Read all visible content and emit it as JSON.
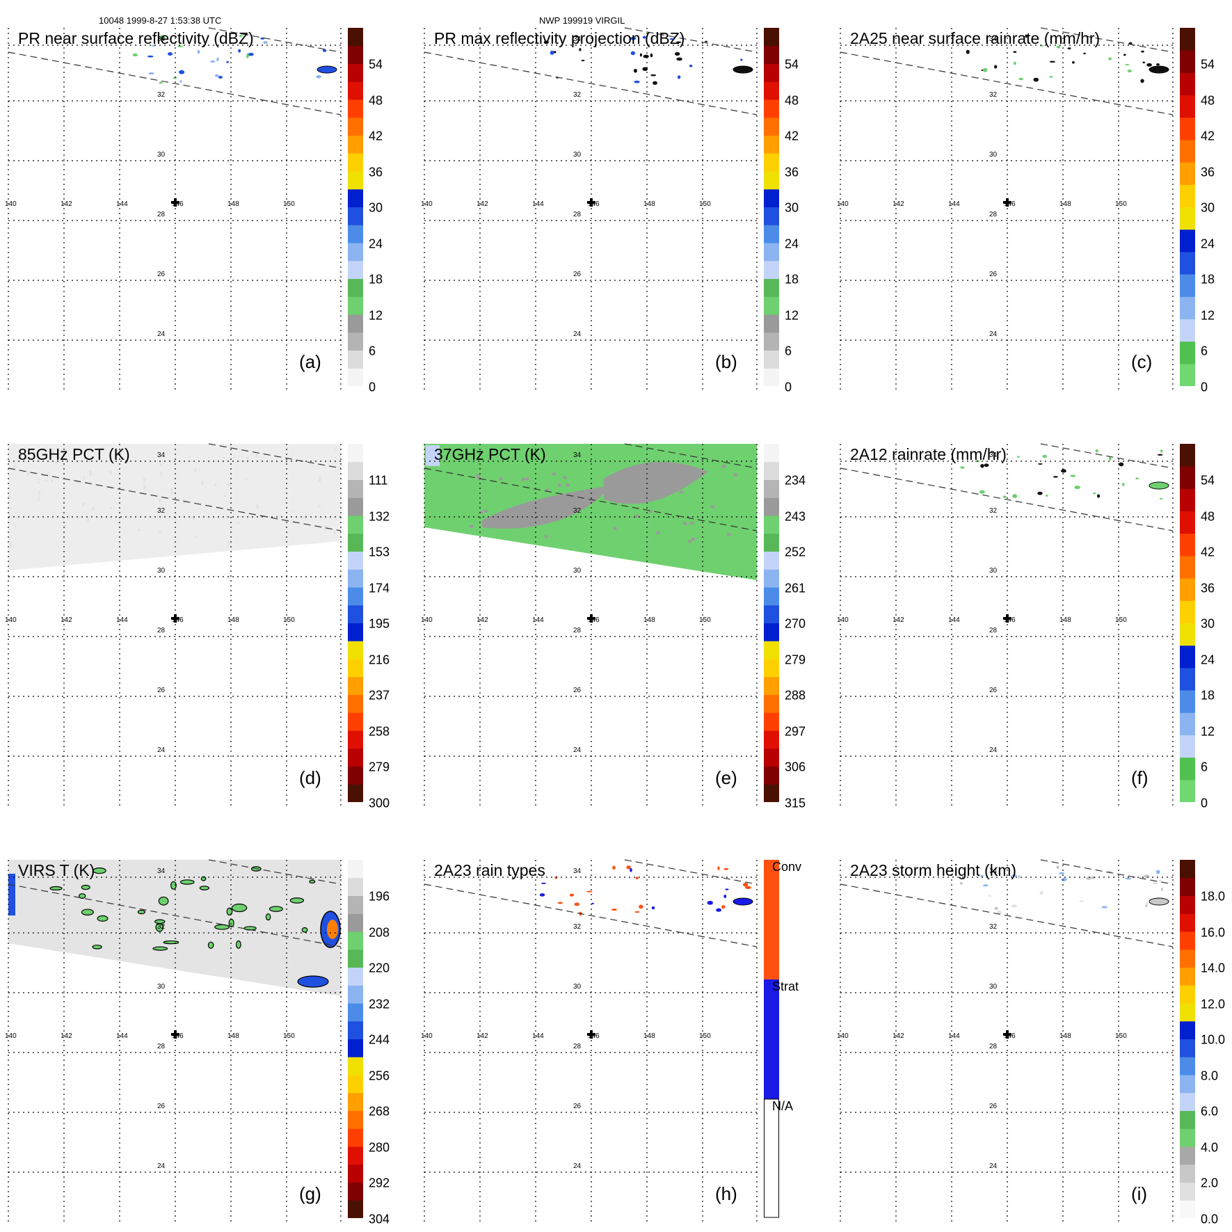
{
  "header": {
    "left": "10048 1999-8-27 1:53:38 UTC",
    "center": "NWP 199919 VIRGIL"
  },
  "map_axes": {
    "longitudes": [
      "140",
      "142",
      "144",
      "146",
      "148",
      "150"
    ],
    "latitudes": [
      "34",
      "32",
      "30",
      "28",
      "26",
      "24"
    ],
    "storm_center_icon": "plus-marker-icon",
    "gridlines": "dotted",
    "swath_edges": "dashed"
  },
  "panels": [
    {
      "id": "a",
      "label": "(a)",
      "title": "PR near surface reflectivity (dBZ)",
      "colorbar": [
        "54",
        "48",
        "42",
        "36",
        "30",
        "24",
        "18",
        "12",
        "6",
        "0"
      ],
      "scheme": "reflectivity",
      "field": "sparse"
    },
    {
      "id": "b",
      "label": "(b)",
      "title": "PR max reflectivity projection (dBZ)",
      "colorbar": [
        "54",
        "48",
        "42",
        "36",
        "30",
        "24",
        "18",
        "12",
        "6",
        "0"
      ],
      "scheme": "reflectivity",
      "field": "sparse-dark"
    },
    {
      "id": "c",
      "label": "(c)",
      "title": "2A25 near surface rainrate (mm/hr)",
      "colorbar": [
        "54",
        "48",
        "42",
        "36",
        "30",
        "24",
        "18",
        "12",
        "6",
        "0"
      ],
      "scheme": "rainrate",
      "field": "sparse-green"
    },
    {
      "id": "d",
      "label": "(d)",
      "title": "85GHz PCT (K)",
      "colorbar": [
        "111",
        "132",
        "153",
        "174",
        "195",
        "216",
        "237",
        "258",
        "279",
        "300"
      ],
      "scheme": "pct",
      "field": "swath-gray"
    },
    {
      "id": "e",
      "label": "(e)",
      "title": "37GHz PCT (K)",
      "colorbar": [
        "234",
        "243",
        "252",
        "261",
        "270",
        "279",
        "288",
        "297",
        "306",
        "315"
      ],
      "scheme": "pct",
      "field": "swath-green"
    },
    {
      "id": "f",
      "label": "(f)",
      "title": "2A12 rainrate (mm/hr)",
      "colorbar": [
        "54",
        "48",
        "42",
        "36",
        "30",
        "24",
        "18",
        "12",
        "6",
        "0"
      ],
      "scheme": "rainrate",
      "field": "sparse-green2"
    },
    {
      "id": "g",
      "label": "(g)",
      "title": "VIRS T (K)",
      "colorbar": [
        "196",
        "208",
        "220",
        "232",
        "244",
        "256",
        "268",
        "280",
        "292",
        "304"
      ],
      "scheme": "pct",
      "field": "swath-virs"
    },
    {
      "id": "h",
      "label": "(h)",
      "title": "2A23 rain types",
      "colorbar": [
        "Conv",
        "Strat",
        "N/A"
      ],
      "scheme": "raintype",
      "field": "sparse-types"
    },
    {
      "id": "i",
      "label": "(i)",
      "title": "2A23 storm height (km)",
      "colorbar": [
        "18.0",
        "16.0",
        "14.0",
        "12.0",
        "10.0",
        "8.0",
        "6.0",
        "4.0",
        "2.0",
        "0.0"
      ],
      "scheme": "height",
      "field": "sparse-gray"
    }
  ],
  "colors": {
    "reflectivity": [
      "#f4f4f4",
      "#dcdcdc",
      "#b4b4b4",
      "#9a9a9a",
      "#6ed06e",
      "#58b858",
      "#c4d4f8",
      "#8cb4f0",
      "#4c8ce8",
      "#2050e0",
      "#0020d0",
      "#f0e000",
      "#ffd000",
      "#ffa000",
      "#ff7000",
      "#ff4000",
      "#e01000",
      "#b80000",
      "#800000",
      "#4a1000"
    ],
    "rainrate": [
      "#70d870",
      "#50c050",
      "#c4d4f8",
      "#8cb4f0",
      "#4c8ce8",
      "#2050e0",
      "#0020d0",
      "#f0e000",
      "#ffd000",
      "#ffa000",
      "#ff7000",
      "#ff4000",
      "#e01000",
      "#b80000",
      "#800000",
      "#4a1000"
    ],
    "raintype": [
      "#ffffff",
      "#1a1ae6",
      "#ff5010"
    ],
    "height": [
      "#f8f8f8",
      "#e0e0e0",
      "#c8c8c8",
      "#a8a8a8",
      "#6ed06e",
      "#58b858",
      "#c4d4f8",
      "#8cb4f0",
      "#4c8ce8",
      "#2050e0",
      "#0020d0",
      "#f0e000",
      "#ffd000",
      "#ffa000",
      "#ff7000",
      "#ff4000",
      "#e01000",
      "#b80000",
      "#800000",
      "#4a1000"
    ]
  }
}
